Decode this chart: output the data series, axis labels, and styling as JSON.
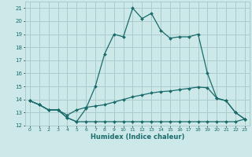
{
  "xlabel": "Humidex (Indice chaleur)",
  "ylabel": "",
  "background_color": "#cce8e8",
  "grid_color": "#aacccc",
  "line_color": "#1a6b6b",
  "x_values": [
    0,
    1,
    2,
    3,
    4,
    5,
    6,
    7,
    8,
    9,
    10,
    11,
    12,
    13,
    14,
    15,
    16,
    17,
    18,
    19,
    20,
    21,
    22,
    23
  ],
  "line1": [
    13.9,
    13.6,
    13.2,
    13.2,
    12.6,
    12.3,
    13.3,
    15.0,
    17.5,
    19.0,
    18.8,
    21.0,
    20.2,
    20.6,
    19.3,
    18.7,
    18.8,
    18.8,
    19.0,
    16.0,
    14.1,
    13.9,
    13.0,
    12.5
  ],
  "line2": [
    13.9,
    13.6,
    13.2,
    13.2,
    12.8,
    13.2,
    13.4,
    13.5,
    13.6,
    13.8,
    14.0,
    14.2,
    14.35,
    14.5,
    14.6,
    14.65,
    14.75,
    14.85,
    14.95,
    14.9,
    14.1,
    13.9,
    13.0,
    12.5
  ],
  "line3": [
    13.9,
    13.6,
    13.2,
    13.2,
    12.6,
    12.3,
    12.3,
    12.3,
    12.3,
    12.3,
    12.3,
    12.3,
    12.3,
    12.3,
    12.3,
    12.3,
    12.3,
    12.3,
    12.3,
    12.3,
    12.3,
    12.3,
    12.3,
    12.5
  ],
  "ylim": [
    12,
    21.5
  ],
  "xlim": [
    -0.5,
    23.5
  ],
  "yticks": [
    12,
    13,
    14,
    15,
    16,
    17,
    18,
    19,
    20,
    21
  ],
  "xticks": [
    0,
    1,
    2,
    3,
    4,
    5,
    6,
    7,
    8,
    9,
    10,
    11,
    12,
    13,
    14,
    15,
    16,
    17,
    18,
    19,
    20,
    21,
    22,
    23
  ]
}
